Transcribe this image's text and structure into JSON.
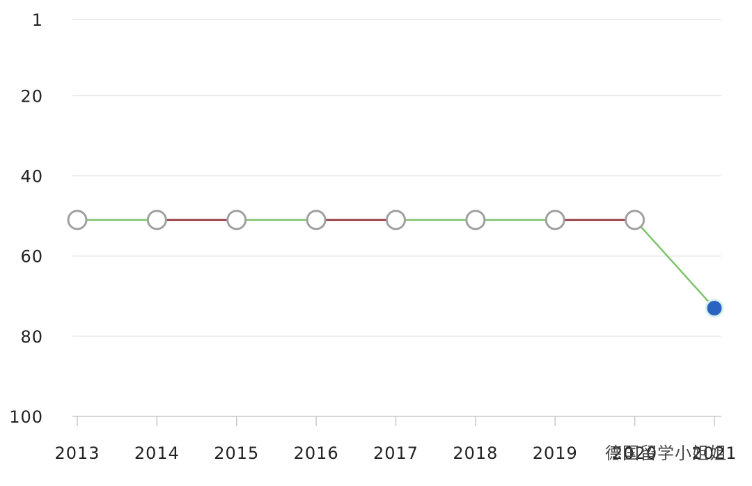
{
  "chart_data": {
    "type": "line",
    "categories": [
      "2013",
      "2014",
      "2015",
      "2016",
      "2017",
      "2018",
      "2019",
      "2020",
      "2021"
    ],
    "series": [
      {
        "values": [
          51,
          51,
          51,
          51,
          51,
          51,
          51,
          51,
          73
        ],
        "segment_colors": [
          "#7dc36b",
          "#8b2a35",
          "#7dc36b",
          "#8b2a35",
          "#7dc36b",
          "#7dc36b",
          "#8b2a35",
          "#7dc36b"
        ],
        "marker_fill": "#ffffff",
        "marker_stroke": "#a0a0a0",
        "last_marker_fill": "#2a63c2"
      }
    ],
    "ylim": [
      1,
      100
    ],
    "yticks": [
      1,
      20,
      40,
      60,
      80,
      100
    ],
    "y_reversed": true,
    "grid": true,
    "watermark": "德国留学小姐姐"
  }
}
